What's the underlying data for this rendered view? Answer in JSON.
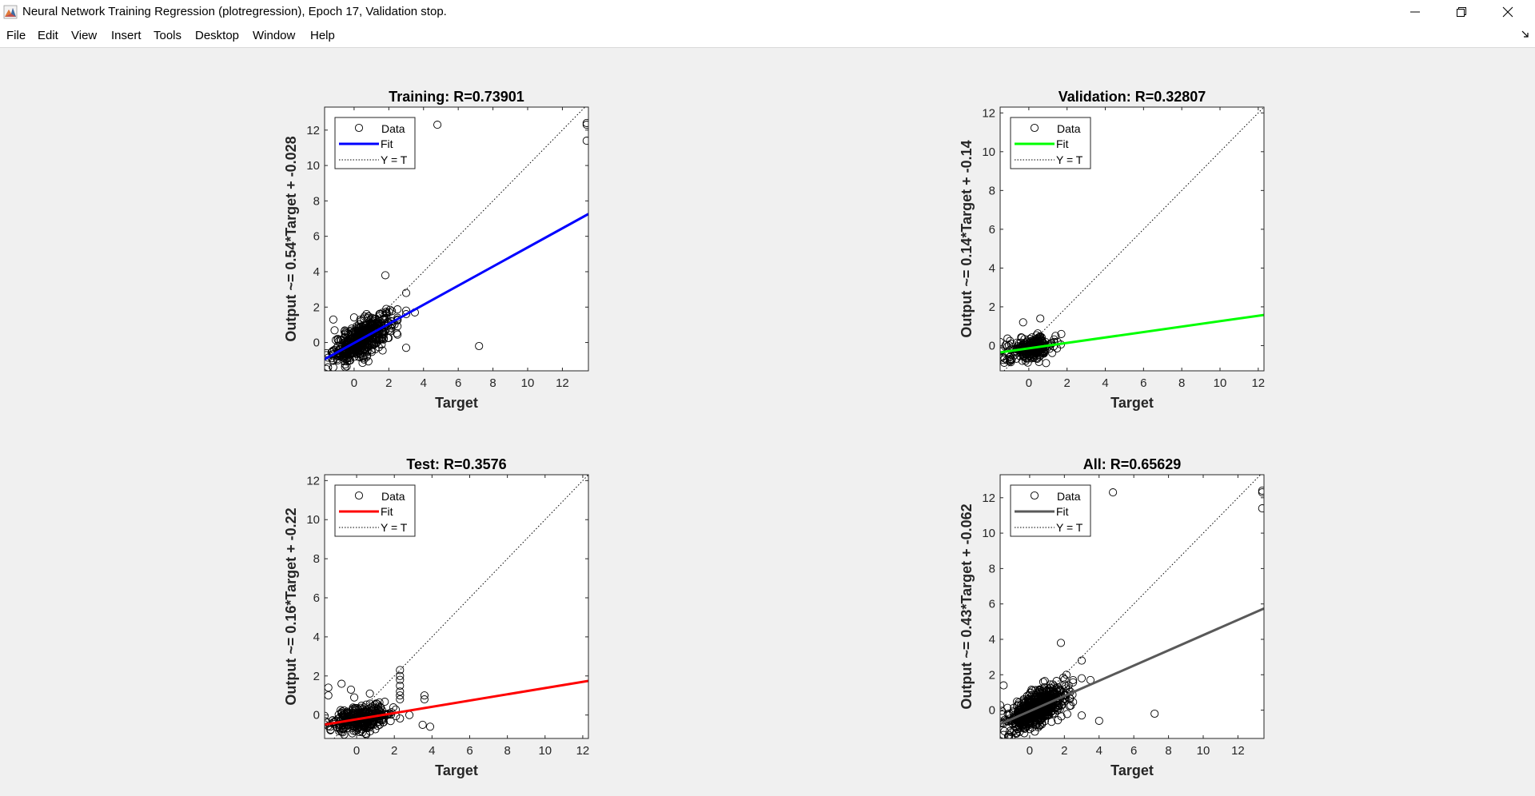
{
  "window": {
    "title": "Neural Network Training Regression (plotregression), Epoch 17, Validation stop.",
    "controls": [
      "minimize",
      "restore",
      "close"
    ]
  },
  "menu": {
    "items": [
      "File",
      "Edit",
      "View",
      "Insert",
      "Tools",
      "Desktop",
      "Window",
      "Help"
    ]
  },
  "colors": {
    "training_fit": "#0000ff",
    "validation_fit": "#00ff00",
    "test_fit": "#ff0000",
    "all_fit": "#595959",
    "figure_background": "#f0f0f0",
    "axes_background": "#ffffff"
  },
  "chart_data": [
    {
      "id": "training",
      "type": "scatter",
      "title": "Training: R=0.73901",
      "xlabel": "Target",
      "ylabel": "Output ~= 0.54*Target + -0.028",
      "xlim": [
        -1.7,
        13.5
      ],
      "ylim": [
        -1.6,
        13.3
      ],
      "xticks": [
        0,
        2,
        4,
        6,
        8,
        10,
        12
      ],
      "yticks": [
        0,
        2,
        4,
        6,
        8,
        10,
        12
      ],
      "grid": false,
      "legend": {
        "position": "top-left",
        "entries": [
          "Data",
          "Fit",
          "Y = T"
        ]
      },
      "fit": {
        "slope": 0.54,
        "intercept": -0.028,
        "color": "#0000ff"
      },
      "identity_line": true,
      "cluster": {
        "xmin": -1.6,
        "xmax": 2.5,
        "ymin": -1.5,
        "ymax": 1.9,
        "count": 520
      },
      "outliers": [
        [
          4.8,
          12.3
        ],
        [
          13.4,
          12.4
        ],
        [
          13.4,
          12.3
        ],
        [
          13.4,
          11.4
        ],
        [
          1.8,
          3.8
        ],
        [
          3.0,
          2.8
        ],
        [
          3.0,
          1.8
        ],
        [
          3.0,
          1.6
        ],
        [
          3.5,
          1.7
        ],
        [
          7.2,
          -0.2
        ],
        [
          3.0,
          -0.3
        ],
        [
          -1.2,
          1.3
        ],
        [
          -1.5,
          -1.4
        ],
        [
          -1.2,
          -1.4
        ]
      ]
    },
    {
      "id": "validation",
      "type": "scatter",
      "title": "Validation: R=0.32807",
      "xlabel": "Target",
      "ylabel": "Output ~= 0.14*Target + -0.14",
      "xlim": [
        -1.5,
        12.3
      ],
      "ylim": [
        -1.3,
        12.3
      ],
      "xticks": [
        0,
        2,
        4,
        6,
        8,
        10,
        12
      ],
      "yticks": [
        0,
        2,
        4,
        6,
        8,
        10,
        12
      ],
      "grid": false,
      "legend": {
        "position": "top-left",
        "entries": [
          "Data",
          "Fit",
          "Y = T"
        ]
      },
      "fit": {
        "slope": 0.14,
        "intercept": -0.14,
        "color": "#00ff00"
      },
      "identity_line": true,
      "cluster": {
        "xmin": -1.5,
        "xmax": 1.7,
        "ymin": -0.9,
        "ymax": 1.2,
        "count": 240
      },
      "outliers": [
        [
          -1.4,
          -0.6
        ],
        [
          1.4,
          0.5
        ],
        [
          1.5,
          0.2
        ],
        [
          -0.3,
          1.2
        ],
        [
          0.6,
          1.4
        ]
      ]
    },
    {
      "id": "test",
      "type": "scatter",
      "title": "Test: R=0.3576",
      "xlabel": "Target",
      "ylabel": "Output ~= 0.16*Target + -0.22",
      "xlim": [
        -1.7,
        12.3
      ],
      "ylim": [
        -1.2,
        12.3
      ],
      "xticks": [
        0,
        2,
        4,
        6,
        8,
        10,
        12
      ],
      "yticks": [
        0,
        2,
        4,
        6,
        8,
        10,
        12
      ],
      "grid": false,
      "legend": {
        "position": "top-left",
        "entries": [
          "Data",
          "Fit",
          "Y = T"
        ]
      },
      "fit": {
        "slope": 0.16,
        "intercept": -0.22,
        "color": "#ff0000"
      },
      "identity_line": true,
      "cluster": {
        "xmin": -1.7,
        "xmax": 2.3,
        "ymin": -1.0,
        "ymax": 1.3,
        "count": 330
      },
      "outliers": [
        [
          2.3,
          2.3
        ],
        [
          2.3,
          2.0
        ],
        [
          2.3,
          1.8
        ],
        [
          2.3,
          1.5
        ],
        [
          2.3,
          1.2
        ],
        [
          2.3,
          1.0
        ],
        [
          2.3,
          0.8
        ],
        [
          2.8,
          0.0
        ],
        [
          3.6,
          1.0
        ],
        [
          3.6,
          0.8
        ],
        [
          3.5,
          -0.5
        ],
        [
          3.9,
          -0.6
        ],
        [
          -1.5,
          1.4
        ],
        [
          -1.5,
          1.0
        ],
        [
          -0.8,
          1.6
        ],
        [
          -0.3,
          1.3
        ],
        [
          0.7,
          1.1
        ]
      ]
    },
    {
      "id": "all",
      "type": "scatter",
      "title": "All: R=0.65629",
      "xlabel": "Target",
      "ylabel": "Output ~= 0.43*Target + -0.062",
      "xlim": [
        -1.7,
        13.5
      ],
      "ylim": [
        -1.6,
        13.3
      ],
      "xticks": [
        0,
        2,
        4,
        6,
        8,
        10,
        12
      ],
      "yticks": [
        0,
        2,
        4,
        6,
        8,
        10,
        12
      ],
      "grid": false,
      "legend": {
        "position": "top-left",
        "entries": [
          "Data",
          "Fit",
          "Y = T"
        ]
      },
      "fit": {
        "slope": 0.43,
        "intercept": -0.062,
        "color": "#595959"
      },
      "identity_line": true,
      "cluster": {
        "xmin": -1.7,
        "xmax": 2.5,
        "ymin": -1.5,
        "ymax": 2.0,
        "count": 640
      },
      "outliers": [
        [
          4.8,
          12.3
        ],
        [
          13.4,
          12.4
        ],
        [
          13.4,
          12.3
        ],
        [
          13.4,
          11.4
        ],
        [
          1.8,
          3.8
        ],
        [
          3.0,
          2.8
        ],
        [
          3.0,
          1.8
        ],
        [
          3.5,
          1.7
        ],
        [
          7.2,
          -0.2
        ],
        [
          3.0,
          -0.3
        ],
        [
          4.0,
          -0.6
        ],
        [
          -1.5,
          1.4
        ],
        [
          -1.5,
          -1.4
        ],
        [
          -1.2,
          -1.4
        ]
      ]
    }
  ]
}
